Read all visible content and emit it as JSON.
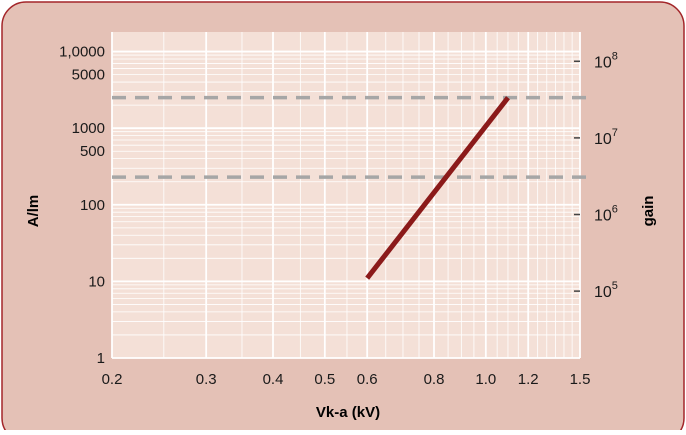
{
  "colors": {
    "panel_bg": "#e4c1b6",
    "panel_border": "#a3262a",
    "plot_bg": "#f4e0d7",
    "grid": "#ffffff",
    "curve": "#8b1a1a",
    "reference_lines": "#a6a6a6",
    "text": "#1a1a1a"
  },
  "chart_data": {
    "type": "line",
    "title": "",
    "xlabel": "Vk-a (kV)",
    "ylabel": "A/lm",
    "y2label": "gain",
    "x_scale": "log",
    "y_scale": "log",
    "y2_scale": "log",
    "grid": true,
    "xlim": [
      0.2,
      1.5
    ],
    "ylim": [
      1,
      18000
    ],
    "y2lim": [
      13400,
      241000000
    ],
    "x_ticks": [
      0.2,
      0.3,
      0.4,
      0.5,
      0.6,
      0.8,
      1.0,
      1.2,
      1.5
    ],
    "x_tick_labels": [
      "0.2",
      "0.3",
      "0.4",
      "0.5",
      "0.6",
      "0.8",
      "1.0",
      "1.2",
      "1.5"
    ],
    "y_ticks": [
      1,
      10,
      100,
      500,
      1000,
      5000,
      10000
    ],
    "y_tick_labels": [
      "1",
      "10",
      "100",
      "500",
      "1000",
      "5000",
      "1,0000"
    ],
    "y2_ticks": [
      {
        "value": 100000,
        "base": "10",
        "exponent": "5"
      },
      {
        "value": 1000000,
        "base": "10",
        "exponent": "6"
      },
      {
        "value": 10000000,
        "base": "10",
        "exponent": "7"
      },
      {
        "value": 100000000,
        "base": "10",
        "exponent": "8"
      }
    ],
    "series": [
      {
        "x": [
          0.6,
          1.1
        ],
        "y": [
          11,
          2500
        ]
      }
    ],
    "reference_lines": [
      {
        "axis": "y",
        "value": 2500,
        "style": "dashed"
      },
      {
        "axis": "y",
        "value": 230,
        "style": "dashed"
      }
    ]
  }
}
